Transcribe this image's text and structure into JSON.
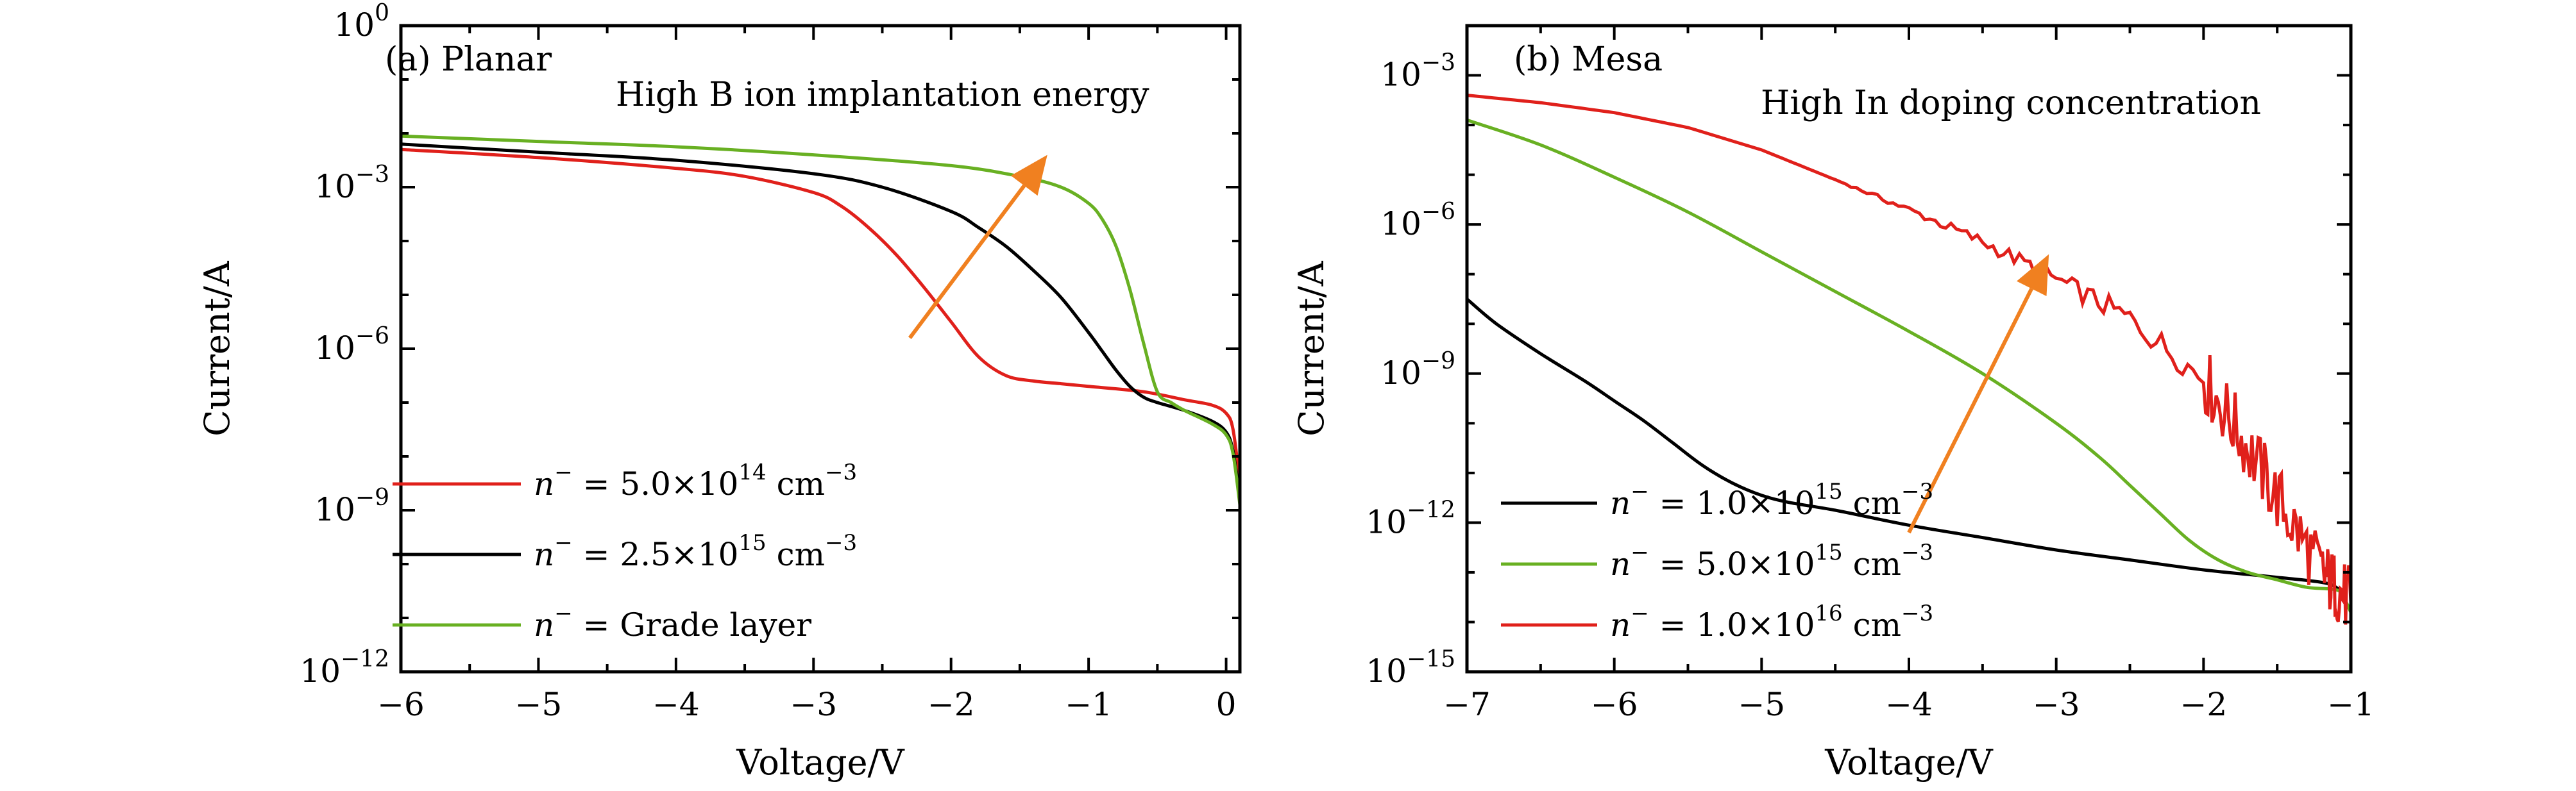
{
  "chart_data": [
    {
      "id": "a",
      "type": "line",
      "panel_label": "(a) Planar",
      "annotation": "High B ion implantation energy",
      "xlabel": "Voltage/V",
      "ylabel": "Current/A",
      "xlim": [
        -6,
        0.1
      ],
      "ylim_log10": [
        -12,
        0
      ],
      "yscale": "log",
      "xticks": [
        -6,
        -5,
        -4,
        -3,
        -2,
        -1,
        0
      ],
      "xtick_labels": [
        "−6",
        "−5",
        "−4",
        "−3",
        "−2",
        "−1",
        "0"
      ],
      "yticks_exp": [
        0,
        -3,
        -6,
        -9,
        -12
      ],
      "ytick_labels": [
        {
          "base": "10",
          "exp": "0"
        },
        {
          "base": "10",
          "exp": "−3"
        },
        {
          "base": "10",
          "exp": "−6"
        },
        {
          "base": "10",
          "exp": "−9"
        },
        {
          "base": "10",
          "exp": "−12"
        }
      ],
      "legend_position": "lower-left",
      "arrow": {
        "from": [
          -2.3,
          -5.8
        ],
        "to": [
          -1.3,
          -2.4
        ],
        "color": "#f08020"
      },
      "series": [
        {
          "name": "n⁻ = 5.0×10¹⁴ cm⁻³",
          "legend": {
            "prefix": "n",
            "prefix_sup": "−",
            "mid": " = 5.0×10",
            "mid_sup": "14",
            "unit": " cm",
            "unit_sup": "−3"
          },
          "color": "#e0201b",
          "x": [
            -6,
            -5,
            -4,
            -3.5,
            -3,
            -2.8,
            -2.6,
            -2.4,
            -2.2,
            -2,
            -1.8,
            -1.6,
            -1.4,
            -1.2,
            -1,
            -0.6,
            -0.3,
            -0.1,
            0,
            0.05,
            0.1
          ],
          "log10_y": [
            -2.3,
            -2.45,
            -2.65,
            -2.8,
            -3.1,
            -3.35,
            -3.75,
            -4.25,
            -4.85,
            -5.5,
            -6.15,
            -6.5,
            -6.6,
            -6.65,
            -6.7,
            -6.8,
            -6.95,
            -7.05,
            -7.2,
            -7.5,
            -8.5
          ]
        },
        {
          "name": "n⁻ = 2.5×10¹⁵ cm⁻³",
          "legend": {
            "prefix": "n",
            "prefix_sup": "−",
            "mid": " = 2.5×10",
            "mid_sup": "15",
            "unit": " cm",
            "unit_sup": "−3"
          },
          "color": "#000000",
          "x": [
            -6,
            -5,
            -4,
            -3,
            -2.5,
            -2,
            -1.8,
            -1.6,
            -1.4,
            -1.2,
            -1,
            -0.9,
            -0.8,
            -0.7,
            -0.6,
            -0.5,
            -0.3,
            -0.1,
            0,
            0.05,
            0.1
          ],
          "log10_y": [
            -2.2,
            -2.35,
            -2.5,
            -2.75,
            -3.0,
            -3.45,
            -3.75,
            -4.1,
            -4.55,
            -5.05,
            -5.7,
            -6.05,
            -6.4,
            -6.7,
            -6.9,
            -7.0,
            -7.15,
            -7.35,
            -7.55,
            -7.9,
            -8.8
          ]
        },
        {
          "name": "n⁻ = Grade layer",
          "legend": {
            "prefix": "n",
            "prefix_sup": "−",
            "mid": " = Grade layer",
            "mid_sup": "",
            "unit": "",
            "unit_sup": ""
          },
          "color": "#68b022",
          "x": [
            -6,
            -5,
            -4,
            -3,
            -2,
            -1.5,
            -1.2,
            -1,
            -0.9,
            -0.8,
            -0.7,
            -0.6,
            -0.5,
            -0.4,
            -0.3,
            -0.1,
            0,
            0.05,
            0.1
          ],
          "log10_y": [
            -2.05,
            -2.15,
            -2.25,
            -2.4,
            -2.6,
            -2.8,
            -3.0,
            -3.3,
            -3.6,
            -4.1,
            -4.9,
            -5.9,
            -6.8,
            -7.0,
            -7.15,
            -7.4,
            -7.6,
            -7.95,
            -8.9
          ]
        }
      ]
    },
    {
      "id": "b",
      "type": "line",
      "panel_label": "(b) Mesa",
      "annotation": "High In doping concentration",
      "xlabel": "Voltage/V",
      "ylabel": "Current/A",
      "xlim": [
        -7,
        -1
      ],
      "ylim_log10": [
        -15,
        -2
      ],
      "yscale": "log",
      "xticks": [
        -7,
        -6,
        -5,
        -4,
        -3,
        -2,
        -1
      ],
      "xtick_labels": [
        "−7",
        "−6",
        "−5",
        "−4",
        "−3",
        "−2",
        "−1"
      ],
      "yticks_exp": [
        -3,
        -6,
        -9,
        -12,
        -15
      ],
      "ytick_labels": [
        {
          "base": "10",
          "exp": "−3"
        },
        {
          "base": "10",
          "exp": "−6"
        },
        {
          "base": "10",
          "exp": "−9"
        },
        {
          "base": "10",
          "exp": "−12"
        },
        {
          "base": "10",
          "exp": "−15"
        }
      ],
      "legend_position": "lower-left",
      "arrow": {
        "from": [
          -4.0,
          -12.2
        ],
        "to": [
          -3.05,
          -6.6
        ],
        "color": "#f08020"
      },
      "series": [
        {
          "name": "n⁻ = 1.0×10¹⁵ cm⁻³",
          "legend": {
            "prefix": "n",
            "prefix_sup": "−",
            "mid": " = 1.0×10",
            "mid_sup": "15",
            "unit": " cm",
            "unit_sup": "−3"
          },
          "color": "#000000",
          "x": [
            -7,
            -6.8,
            -6.5,
            -6.2,
            -6,
            -5.8,
            -5.6,
            -5.4,
            -5.2,
            -5,
            -4.8,
            -4.5,
            -4,
            -3.5,
            -3,
            -2.5,
            -2,
            -1.5,
            -1.2,
            -1.1,
            -1.05,
            -1
          ],
          "log10_y": [
            -7.5,
            -8.0,
            -8.6,
            -9.15,
            -9.55,
            -9.95,
            -10.4,
            -10.85,
            -11.2,
            -11.45,
            -11.6,
            -11.75,
            -12.05,
            -12.3,
            -12.55,
            -12.75,
            -12.95,
            -13.1,
            -13.2,
            -13.3,
            -13.5,
            -13.8
          ],
          "noise_amp": 0
        },
        {
          "name": "n⁻ = 5.0×10¹⁵ cm⁻³",
          "legend": {
            "prefix": "n",
            "prefix_sup": "−",
            "mid": " = 5.0×10",
            "mid_sup": "15",
            "unit": " cm",
            "unit_sup": "−3"
          },
          "color": "#68b022",
          "x": [
            -7,
            -6.5,
            -6,
            -5.5,
            -5,
            -4.5,
            -4,
            -3.5,
            -3,
            -2.7,
            -2.5,
            -2.3,
            -2.1,
            -1.9,
            -1.7,
            -1.5,
            -1.3,
            -1.1,
            -1.05,
            -1
          ],
          "log10_y": [
            -3.9,
            -4.4,
            -5.05,
            -5.75,
            -6.55,
            -7.35,
            -8.15,
            -9.0,
            -10.0,
            -10.7,
            -11.25,
            -11.8,
            -12.35,
            -12.75,
            -13.0,
            -13.15,
            -13.3,
            -13.35,
            -13.5,
            -13.8
          ],
          "noise_amp": 0
        },
        {
          "name": "n⁻ = 1.0×10¹⁶ cm⁻³",
          "legend": {
            "prefix": "n",
            "prefix_sup": "−",
            "mid": " = 1.0×10",
            "mid_sup": "16",
            "unit": " cm",
            "unit_sup": "−3"
          },
          "color": "#e0201b",
          "x": [
            -7,
            -6.5,
            -6,
            -5.5,
            -5,
            -4.5,
            -4,
            -3.5,
            -3,
            -2.5,
            -2,
            -1.8,
            -1.6,
            -1.4,
            -1.2,
            -1.1,
            -1
          ],
          "log10_y": [
            -3.4,
            -3.55,
            -3.75,
            -4.05,
            -4.5,
            -5.1,
            -5.7,
            -6.35,
            -7.1,
            -7.9,
            -9.1,
            -10.0,
            -11.0,
            -12.0,
            -13.0,
            -13.3,
            -13.6
          ],
          "noise_amp": 0.45
        }
      ]
    }
  ]
}
